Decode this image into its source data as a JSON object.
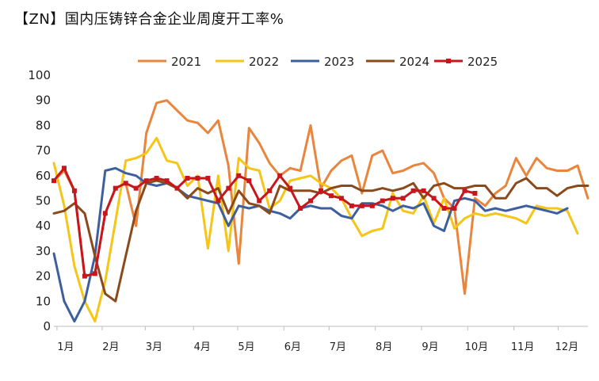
{
  "chart_data": {
    "type": "line",
    "title": "【ZN】国内压铸锌合金企业周度开工率%",
    "xlabel": "",
    "ylabel": "",
    "ylim": [
      0,
      100
    ],
    "yticks": [
      0,
      10,
      20,
      30,
      40,
      50,
      60,
      70,
      80,
      90,
      100
    ],
    "xlim": [
      0,
      52
    ],
    "month_ticks": [
      {
        "label": "1月",
        "week": 0.3
      },
      {
        "label": "2月",
        "week": 4.7
      },
      {
        "label": "3月",
        "week": 8.9
      },
      {
        "label": "4月",
        "week": 13.6
      },
      {
        "label": "5月",
        "week": 17.9
      },
      {
        "label": "6月",
        "week": 22.4
      },
      {
        "label": "7月",
        "week": 26.8
      },
      {
        "label": "8月",
        "week": 31.3
      },
      {
        "label": "9月",
        "week": 35.8
      },
      {
        "label": "10月",
        "week": 40.3
      },
      {
        "label": "11月",
        "week": 44.8
      },
      {
        "label": "12月",
        "week": 49.1
      }
    ],
    "series": [
      {
        "name": "2021",
        "color": "#E9853D",
        "marker": false,
        "values": [
          58,
          62,
          54,
          20,
          21,
          45,
          55,
          57,
          40,
          77,
          89,
          90,
          86,
          82,
          81,
          77,
          82,
          64,
          25,
          79,
          73,
          65,
          60,
          63,
          62,
          80,
          55,
          62,
          66,
          68,
          53,
          68,
          70,
          61,
          62,
          64,
          65,
          61,
          51,
          47,
          13,
          51,
          48,
          53,
          56,
          67,
          60,
          67,
          63,
          62,
          62,
          64,
          51
        ]
      },
      {
        "name": "2022",
        "color": "#F5C518",
        "marker": false,
        "values": [
          65,
          48,
          24,
          10,
          2,
          18,
          42,
          66,
          67,
          69,
          75,
          66,
          65,
          56,
          60,
          31,
          60,
          30,
          67,
          63,
          62,
          47,
          50,
          58,
          59,
          60,
          57,
          55,
          51,
          43,
          36,
          38,
          39,
          53,
          46,
          45,
          52,
          41,
          51,
          39,
          43,
          45,
          44,
          45,
          44,
          43,
          41,
          48,
          47,
          47,
          46,
          37
        ]
      },
      {
        "name": "2023",
        "color": "#3E5F9E",
        "marker": false,
        "values": [
          29,
          10,
          2,
          10,
          28,
          62,
          63,
          61,
          60,
          57,
          56,
          57,
          55,
          52,
          51,
          50,
          49,
          40,
          48,
          47,
          48,
          46,
          45,
          43,
          47,
          48,
          47,
          47,
          44,
          43,
          49,
          49,
          48,
          46,
          48,
          47,
          49,
          40,
          38,
          50,
          51,
          50,
          46,
          47,
          46,
          47,
          48,
          47,
          46,
          45,
          47
        ]
      },
      {
        "name": "2024",
        "color": "#8B4A1C",
        "marker": false,
        "values": [
          45,
          46,
          49,
          45,
          28,
          13,
          10,
          28,
          46,
          57,
          58,
          57,
          55,
          51,
          55,
          53,
          55,
          45,
          54,
          49,
          48,
          45,
          56,
          54,
          54,
          54,
          53,
          55,
          56,
          56,
          54,
          54,
          55,
          54,
          55,
          57,
          51,
          56,
          57,
          55,
          55,
          56,
          56,
          51,
          51,
          57,
          59,
          55,
          55,
          52,
          55,
          56,
          56
        ]
      },
      {
        "name": "2025",
        "color": "#C8161D",
        "marker": true,
        "values": [
          58,
          63,
          54,
          20,
          21,
          45,
          55,
          57,
          55,
          58,
          59,
          58,
          55,
          59,
          59,
          59,
          50,
          55,
          60,
          58,
          50,
          54,
          60,
          55,
          47,
          50,
          54,
          52,
          51,
          48,
          48,
          48,
          50,
          51,
          51,
          54,
          54,
          51,
          47,
          47,
          54,
          53
        ]
      }
    ],
    "legend": [
      "2021",
      "2022",
      "2023",
      "2024",
      "2025"
    ],
    "legend_position": "top-center",
    "grid": false
  }
}
